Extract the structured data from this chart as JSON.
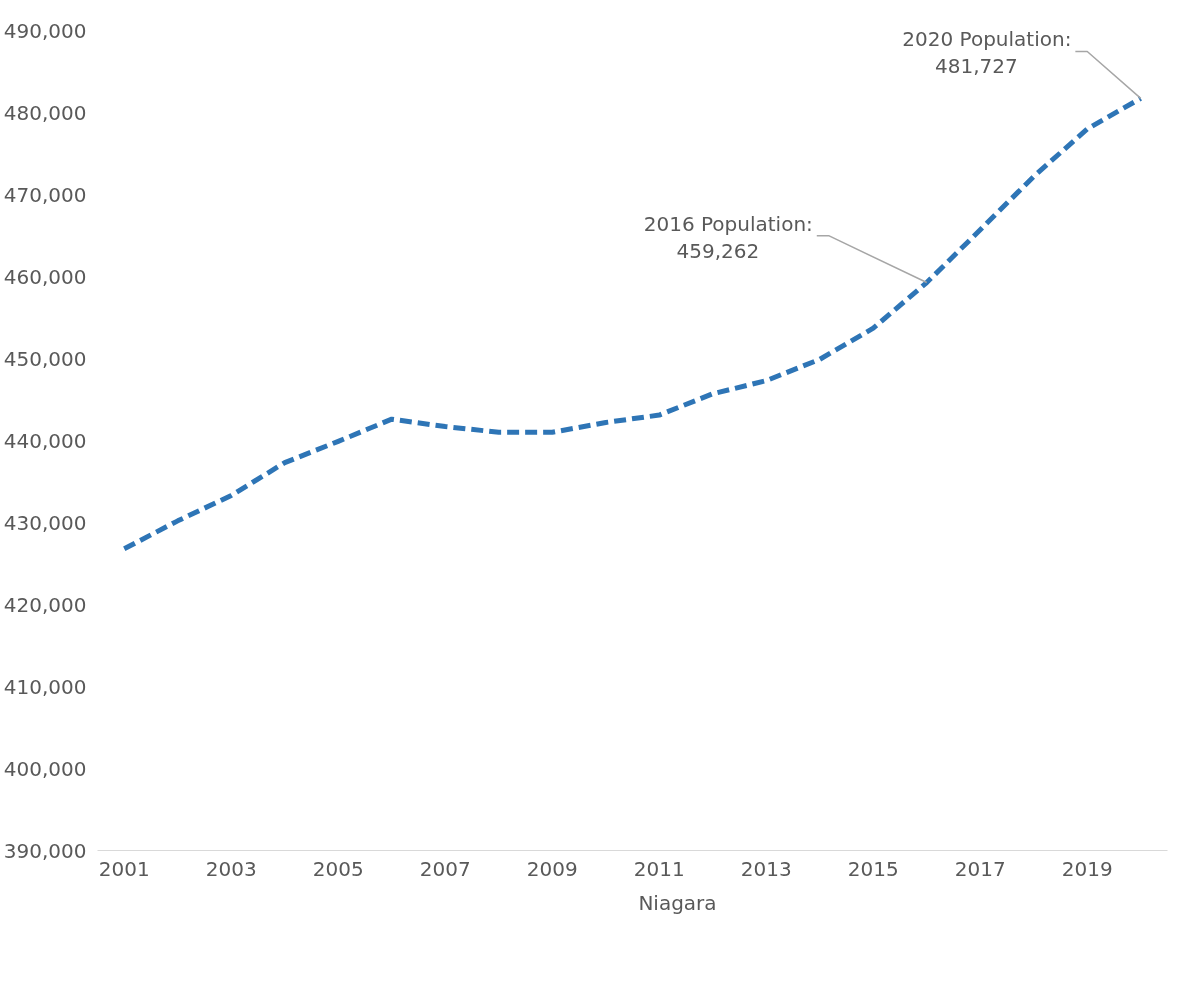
{
  "chart_data": {
    "type": "line",
    "x": [
      2001,
      2002,
      2003,
      2004,
      2005,
      2006,
      2007,
      2008,
      2009,
      2010,
      2011,
      2012,
      2013,
      2014,
      2015,
      2016,
      2017,
      2018,
      2019,
      2020
    ],
    "series": [
      {
        "name": "Niagara",
        "color": "#2e75b6",
        "values": [
          426800,
          430200,
          433300,
          437300,
          439900,
          442600,
          441700,
          441000,
          441000,
          442200,
          443100,
          445700,
          447300,
          449900,
          453700,
          459262,
          465700,
          472200,
          478000,
          481727
        ]
      }
    ],
    "xlim": [
      2000.5,
      2020.5
    ],
    "xticks": [
      2001,
      2003,
      2005,
      2007,
      2009,
      2011,
      2013,
      2015,
      2017,
      2019
    ],
    "ylim": [
      390000,
      490000
    ],
    "yticks": [
      {
        "value": 390000,
        "label": "390,000"
      },
      {
        "value": 400000,
        "label": "400,000"
      },
      {
        "value": 410000,
        "label": "410,000"
      },
      {
        "value": 420000,
        "label": "420,000"
      },
      {
        "value": 430000,
        "label": "430,000"
      },
      {
        "value": 440000,
        "label": "440,000"
      },
      {
        "value": 450000,
        "label": "450,000"
      },
      {
        "value": 460000,
        "label": "460,000"
      },
      {
        "value": 470000,
        "label": "470,000"
      },
      {
        "value": 480000,
        "label": "480,000"
      },
      {
        "value": 490000,
        "label": "490,000"
      }
    ],
    "annotations": [
      {
        "text": "2016 Population:\n459,262",
        "x": 2016,
        "y": 459262
      },
      {
        "text": "2020 Population:\n481,727",
        "x": 2020,
        "y": 481727
      }
    ],
    "line_style": "dashed",
    "grid": false,
    "legend": "bottom"
  }
}
